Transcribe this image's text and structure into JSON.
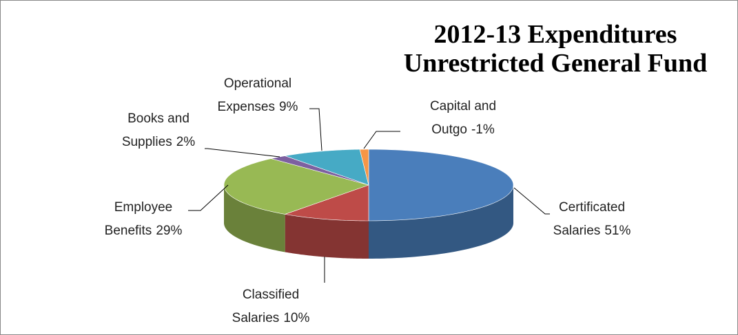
{
  "chart_data": {
    "type": "pie3d",
    "title": "2012-13 Expenditures Unrestricted General Fund",
    "categories": [
      "Certificated Salaries",
      "Classified Salaries",
      "Employee Benefits",
      "Books and Supplies",
      "Operational Expenses",
      "Capital and Outgo"
    ],
    "values": [
      51,
      10,
      29,
      2,
      9,
      -1
    ],
    "value_labels": [
      "51%",
      "10%",
      "29%",
      "2%",
      "9%",
      "-1%"
    ],
    "colors": [
      "#4a7ebb",
      "#be4b48",
      "#98b954",
      "#7d60a0",
      "#46aac5",
      "#f79646"
    ]
  }
}
